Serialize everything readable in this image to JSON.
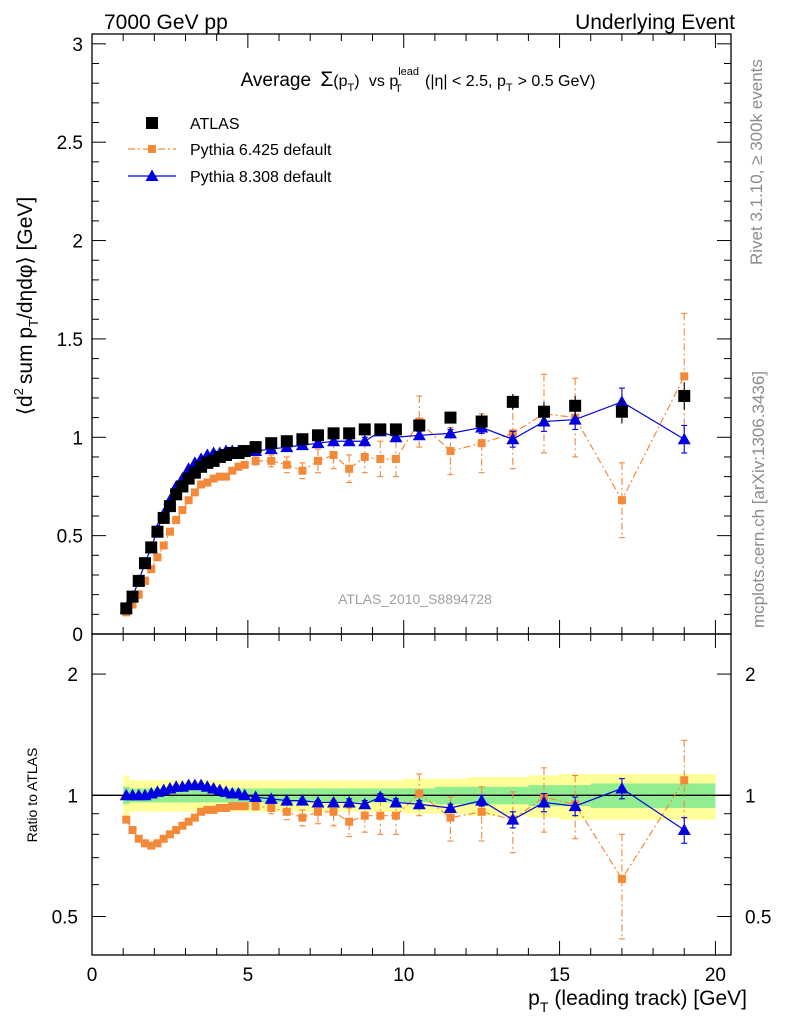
{
  "header": {
    "left": "7000 GeV pp",
    "right": "Underlying Event"
  },
  "side_labels": {
    "rivet": "Rivet 3.1.10, ≥ 300k events",
    "mcplots": "mcplots.cern.ch [arXiv:1306.3436]"
  },
  "watermark": "ATLAS_2010_S8894728",
  "colors": {
    "atlas": "#000000",
    "pythia6": "#f5893a",
    "pythia8": "#0000e0",
    "band_inner": "#90ee90",
    "band_outer": "#ffff99"
  },
  "chart_data": [
    {
      "type": "scatter",
      "panel": "main",
      "title_parts": {
        "lead": "Average",
        "sigma": "Σ",
        "arg": "(p",
        "arg_sub": "T",
        "arg_close": ")",
        "vs": "vs p",
        "vs_sup": "lead",
        "vs_sub": "T",
        "cut_a": "(|η| < 2.5, p",
        "cut_sub": "T",
        "cut_b": "> 0.5 GeV)"
      },
      "ylabel_parts": {
        "open": "⟨d",
        "sup": "2",
        "mid": "sum p",
        "sub": "T",
        "tail": "/dηdφ⟩ [GeV]"
      },
      "xlim": [
        0,
        20.5
      ],
      "ylim": [
        0,
        3.05
      ],
      "yticks": [
        "0",
        "0.5",
        "1",
        "1.5",
        "2",
        "2.5",
        "3"
      ],
      "legend_position": "top-left",
      "series": [
        {
          "name": "ATLAS",
          "marker": "square",
          "x": [
            1.1,
            1.3,
            1.5,
            1.7,
            1.9,
            2.1,
            2.3,
            2.5,
            2.7,
            2.9,
            3.1,
            3.3,
            3.5,
            3.7,
            3.9,
            4.1,
            4.3,
            4.5,
            4.7,
            4.9,
            5.25,
            5.75,
            6.25,
            6.75,
            7.25,
            7.75,
            8.25,
            8.75,
            9.25,
            9.75,
            10.5,
            11.5,
            12.5,
            13.5,
            14.5,
            15.5,
            17.0,
            19.0
          ],
          "y": [
            0.13,
            0.19,
            0.27,
            0.36,
            0.44,
            0.52,
            0.59,
            0.65,
            0.71,
            0.75,
            0.79,
            0.82,
            0.85,
            0.87,
            0.88,
            0.9,
            0.91,
            0.92,
            0.92,
            0.93,
            0.95,
            0.97,
            0.98,
            0.99,
            1.01,
            1.02,
            1.02,
            1.04,
            1.04,
            1.04,
            1.06,
            1.1,
            1.08,
            1.18,
            1.13,
            1.16,
            1.13,
            1.21
          ],
          "err": [
            0.01,
            0.01,
            0.01,
            0.01,
            0.01,
            0.01,
            0.01,
            0.01,
            0.01,
            0.01,
            0.01,
            0.01,
            0.01,
            0.01,
            0.01,
            0.01,
            0.01,
            0.01,
            0.01,
            0.01,
            0.01,
            0.01,
            0.01,
            0.01,
            0.01,
            0.01,
            0.01,
            0.01,
            0.02,
            0.02,
            0.03,
            0.03,
            0.04,
            0.04,
            0.05,
            0.05,
            0.06,
            0.07
          ]
        },
        {
          "name": "Pythia 6.425 default",
          "marker": "square-small",
          "x": [
            1.1,
            1.3,
            1.5,
            1.7,
            1.9,
            2.1,
            2.3,
            2.5,
            2.7,
            2.9,
            3.1,
            3.3,
            3.5,
            3.7,
            3.9,
            4.1,
            4.3,
            4.5,
            4.7,
            4.9,
            5.25,
            5.75,
            6.25,
            6.75,
            7.25,
            7.75,
            8.25,
            8.75,
            9.25,
            9.75,
            10.5,
            11.5,
            12.5,
            13.5,
            14.5,
            15.5,
            17.0,
            19.0
          ],
          "y": [
            0.11,
            0.15,
            0.2,
            0.27,
            0.33,
            0.39,
            0.45,
            0.52,
            0.58,
            0.63,
            0.68,
            0.72,
            0.76,
            0.77,
            0.79,
            0.8,
            0.8,
            0.83,
            0.85,
            0.86,
            0.88,
            0.88,
            0.86,
            0.83,
            0.88,
            0.91,
            0.84,
            0.9,
            0.89,
            0.89,
            1.08,
            0.93,
            0.97,
            1.02,
            1.12,
            1.1,
            0.68,
            1.31
          ],
          "err": [
            0.01,
            0.01,
            0.01,
            0.01,
            0.01,
            0.01,
            0.01,
            0.01,
            0.01,
            0.01,
            0.01,
            0.01,
            0.01,
            0.01,
            0.01,
            0.01,
            0.01,
            0.01,
            0.01,
            0.01,
            0.02,
            0.03,
            0.04,
            0.04,
            0.06,
            0.07,
            0.07,
            0.08,
            0.09,
            0.09,
            0.13,
            0.12,
            0.15,
            0.18,
            0.2,
            0.2,
            0.19,
            0.32
          ]
        },
        {
          "name": "Pythia 8.308 default",
          "marker": "triangle",
          "x": [
            1.1,
            1.3,
            1.5,
            1.7,
            1.9,
            2.1,
            2.3,
            2.5,
            2.7,
            2.9,
            3.1,
            3.3,
            3.5,
            3.7,
            3.9,
            4.1,
            4.3,
            4.5,
            4.7,
            4.9,
            5.25,
            5.75,
            6.25,
            6.75,
            7.25,
            7.75,
            8.25,
            8.75,
            9.25,
            9.75,
            10.5,
            11.5,
            12.5,
            13.5,
            14.5,
            15.5,
            17.0,
            19.0
          ],
          "y": [
            0.13,
            0.19,
            0.27,
            0.36,
            0.44,
            0.53,
            0.61,
            0.68,
            0.75,
            0.79,
            0.84,
            0.87,
            0.89,
            0.91,
            0.92,
            0.92,
            0.93,
            0.93,
            0.93,
            0.93,
            0.93,
            0.94,
            0.95,
            0.96,
            0.97,
            0.98,
            0.98,
            0.98,
            1.03,
            1.0,
            1.01,
            1.02,
            1.05,
            0.99,
            1.08,
            1.09,
            1.18,
            0.99
          ],
          "err": [
            0.005,
            0.005,
            0.005,
            0.005,
            0.005,
            0.005,
            0.005,
            0.005,
            0.005,
            0.005,
            0.005,
            0.005,
            0.005,
            0.005,
            0.005,
            0.005,
            0.005,
            0.005,
            0.005,
            0.005,
            0.01,
            0.01,
            0.01,
            0.01,
            0.01,
            0.01,
            0.02,
            0.02,
            0.02,
            0.02,
            0.02,
            0.02,
            0.03,
            0.04,
            0.05,
            0.05,
            0.07,
            0.07
          ]
        }
      ]
    },
    {
      "type": "scatter",
      "panel": "ratio",
      "ylabel": "Ratio to ATLAS",
      "xlabel_parts": {
        "p": "p",
        "sub": "T",
        "rest": "(leading track) [GeV]"
      },
      "xlim": [
        0,
        20.5
      ],
      "xticks": [
        "0",
        "5",
        "10",
        "15",
        "20"
      ],
      "ylim_note": "log",
      "yticks": [
        "0.5",
        "1",
        "2"
      ],
      "reference": 1,
      "band": {
        "x_edges": [
          1.0,
          1.2,
          1.4,
          1.6,
          1.8,
          2.0,
          2.2,
          2.4,
          2.6,
          2.8,
          3.0,
          3.2,
          3.4,
          3.6,
          3.8,
          4.0,
          4.2,
          4.4,
          4.6,
          4.8,
          5.0,
          5.5,
          6.0,
          6.5,
          7.0,
          7.5,
          8.0,
          8.5,
          9.0,
          9.5,
          10.0,
          11.0,
          12.0,
          13.0,
          14.0,
          15.0,
          16.0,
          18.0,
          20.0
        ],
        "inner": [
          0.05,
          0.04,
          0.04,
          0.04,
          0.04,
          0.04,
          0.04,
          0.04,
          0.04,
          0.04,
          0.04,
          0.04,
          0.04,
          0.04,
          0.04,
          0.04,
          0.04,
          0.04,
          0.04,
          0.04,
          0.04,
          0.04,
          0.04,
          0.04,
          0.04,
          0.04,
          0.04,
          0.04,
          0.04,
          0.04,
          0.04,
          0.05,
          0.05,
          0.05,
          0.06,
          0.06,
          0.07,
          0.07
        ],
        "outer": [
          0.12,
          0.09,
          0.09,
          0.09,
          0.09,
          0.09,
          0.09,
          0.09,
          0.09,
          0.09,
          0.09,
          0.09,
          0.09,
          0.09,
          0.09,
          0.09,
          0.09,
          0.09,
          0.09,
          0.09,
          0.09,
          0.09,
          0.09,
          0.09,
          0.09,
          0.09,
          0.09,
          0.09,
          0.09,
          0.09,
          0.1,
          0.1,
          0.11,
          0.11,
          0.12,
          0.13,
          0.13,
          0.13
        ]
      },
      "series": [
        {
          "name": "Pythia 6.425 default",
          "x": [
            1.1,
            1.3,
            1.5,
            1.7,
            1.9,
            2.1,
            2.3,
            2.5,
            2.7,
            2.9,
            3.1,
            3.3,
            3.5,
            3.7,
            3.9,
            4.1,
            4.3,
            4.5,
            4.7,
            4.9,
            5.25,
            5.75,
            6.25,
            6.75,
            7.25,
            7.75,
            8.25,
            8.75,
            9.25,
            9.75,
            10.5,
            11.5,
            12.5,
            13.5,
            14.5,
            15.5,
            17.0,
            19.0
          ],
          "y": [
            0.87,
            0.82,
            0.78,
            0.76,
            0.75,
            0.76,
            0.78,
            0.8,
            0.82,
            0.84,
            0.86,
            0.88,
            0.91,
            0.92,
            0.92,
            0.93,
            0.93,
            0.94,
            0.94,
            0.94,
            0.94,
            0.93,
            0.91,
            0.88,
            0.91,
            0.91,
            0.86,
            0.89,
            0.89,
            0.89,
            1.01,
            0.88,
            0.91,
            0.87,
            0.99,
            0.95,
            0.62,
            1.09
          ],
          "err": [
            0.01,
            0.01,
            0.01,
            0.01,
            0.01,
            0.01,
            0.01,
            0.01,
            0.01,
            0.01,
            0.01,
            0.01,
            0.01,
            0.01,
            0.01,
            0.01,
            0.01,
            0.01,
            0.01,
            0.01,
            0.02,
            0.03,
            0.04,
            0.04,
            0.06,
            0.07,
            0.07,
            0.08,
            0.09,
            0.09,
            0.12,
            0.11,
            0.14,
            0.15,
            0.18,
            0.17,
            0.18,
            0.28
          ]
        },
        {
          "name": "Pythia 8.308 default",
          "x": [
            1.1,
            1.3,
            1.5,
            1.7,
            1.9,
            2.1,
            2.3,
            2.5,
            2.7,
            2.9,
            3.1,
            3.3,
            3.5,
            3.7,
            3.9,
            4.1,
            4.3,
            4.5,
            4.7,
            4.9,
            5.25,
            5.75,
            6.25,
            6.75,
            7.25,
            7.75,
            8.25,
            8.75,
            9.25,
            9.75,
            10.5,
            11.5,
            12.5,
            13.5,
            14.5,
            15.5,
            17.0,
            19.0
          ],
          "y": [
            1.0,
            1.0,
            1.0,
            1.0,
            1.01,
            1.02,
            1.03,
            1.04,
            1.05,
            1.05,
            1.06,
            1.06,
            1.06,
            1.05,
            1.04,
            1.03,
            1.02,
            1.01,
            1.01,
            1.0,
            0.99,
            0.98,
            0.97,
            0.97,
            0.96,
            0.96,
            0.96,
            0.95,
            0.99,
            0.96,
            0.95,
            0.93,
            0.97,
            0.87,
            0.96,
            0.94,
            1.04,
            0.82
          ],
          "err": [
            0.005,
            0.005,
            0.005,
            0.005,
            0.005,
            0.005,
            0.005,
            0.005,
            0.005,
            0.005,
            0.005,
            0.005,
            0.005,
            0.005,
            0.005,
            0.005,
            0.005,
            0.005,
            0.005,
            0.005,
            0.01,
            0.01,
            0.01,
            0.01,
            0.01,
            0.01,
            0.02,
            0.02,
            0.02,
            0.02,
            0.02,
            0.02,
            0.03,
            0.04,
            0.05,
            0.05,
            0.06,
            0.06
          ]
        }
      ]
    }
  ]
}
